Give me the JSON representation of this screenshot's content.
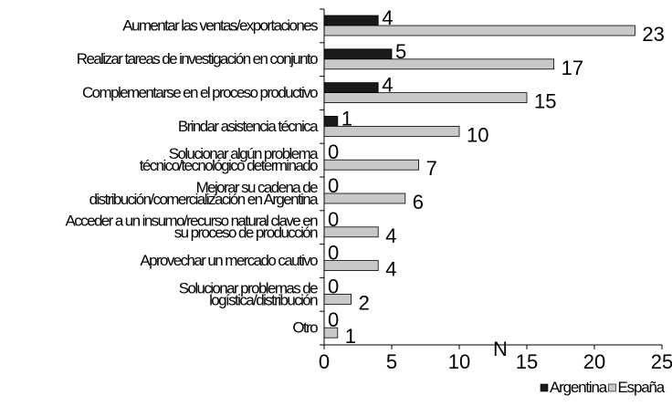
{
  "chart_data": {
    "type": "bar",
    "orientation": "horizontal",
    "categories": [
      "Aumentar las ventas/exportaciones",
      "Realizar tareas de investigación en conjunto",
      "Complementarse en el proceso productivo",
      "Brindar asistencia técnica",
      "Solucionar algún problema técnico/tecnológico determinado",
      "Mejorar su cadena de distribución/comercialización en Argentina",
      "Acceder a un insumo/recurso natural clave en su proceso de producción",
      "Aprovechar un mercado cautivo",
      "Solucionar problemas de logística/distribución",
      "Otro"
    ],
    "series": [
      {
        "name": "Argentina",
        "values": [
          4,
          5,
          4,
          1,
          0,
          0,
          0,
          0,
          0,
          0
        ],
        "color": "#1a1a1a"
      },
      {
        "name": "España",
        "values": [
          23,
          17,
          15,
          10,
          7,
          6,
          4,
          4,
          2,
          1
        ],
        "color": "#c8c8c8"
      }
    ],
    "xlabel": "N",
    "xlim": [
      0,
      25
    ],
    "xticks": [
      0,
      5,
      10,
      15,
      20,
      25
    ],
    "legend_position": "bottom-right",
    "grid": false
  }
}
